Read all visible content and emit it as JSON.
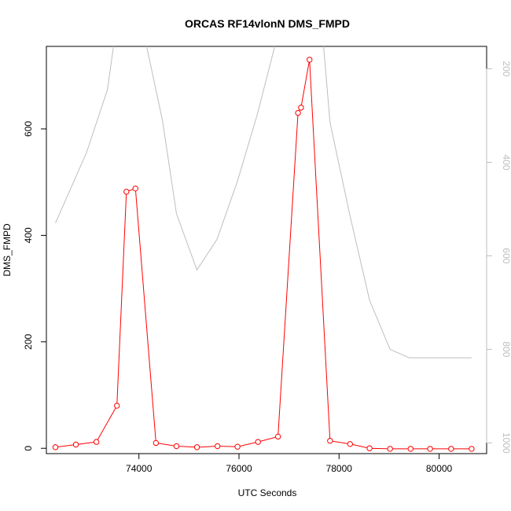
{
  "chart_data": {
    "type": "line",
    "title": "ORCAS RF14vlonN DMS_FMPD",
    "xlabel": "UTC Seconds",
    "ylabel": "DMS_FMPD",
    "xlim": [
      72150,
      80950
    ],
    "ylim": [
      -10,
      755
    ],
    "y2lim": [
      1023,
      152
    ],
    "y2_inverted": true,
    "x_ticks": [
      74000,
      76000,
      78000,
      80000
    ],
    "x_tick_labels": [
      "74000",
      "76000",
      "78000",
      "80000"
    ],
    "y_ticks": [
      0,
      200,
      400,
      600
    ],
    "y_tick_labels": [
      "0",
      "200",
      "400",
      "600"
    ],
    "y2_ticks": [
      200,
      400,
      600,
      800,
      1000
    ],
    "y2_tick_labels": [
      "200",
      "400",
      "600",
      "800",
      "1000"
    ],
    "grid": false,
    "series": [
      {
        "axis": "left",
        "color": "#ff0000",
        "marker": "open-circle",
        "x": [
          72330,
          72740,
          73150,
          73560,
          73750,
          73930,
          74340,
          74750,
          75160,
          75570,
          75970,
          76380,
          76780,
          77180,
          77240,
          77410,
          77820,
          78220,
          78610,
          79020,
          79430,
          79820,
          80240,
          80650
        ],
        "values": [
          2,
          7,
          12,
          80,
          482,
          488,
          10,
          4,
          2,
          4,
          3,
          12,
          22,
          630,
          640,
          730,
          14,
          8,
          0,
          -1,
          -1,
          -1,
          -1,
          -1
        ]
      },
      {
        "axis": "right",
        "color": "#bebebe",
        "marker": "none",
        "x": [
          72330,
          72950,
          73370,
          73560,
          73750,
          74050,
          74470,
          74750,
          75160,
          75560,
          75970,
          76360,
          76720,
          76950,
          77180,
          77330,
          77650,
          77820,
          78220,
          78610,
          79020,
          79400,
          79820,
          80240,
          80650
        ],
        "values": [
          530,
          380,
          245,
          100,
          100,
          100,
          310,
          510,
          630,
          565,
          440,
          300,
          150,
          100,
          100,
          100,
          100,
          315,
          515,
          695,
          800,
          818,
          818,
          818,
          818
        ]
      }
    ]
  }
}
